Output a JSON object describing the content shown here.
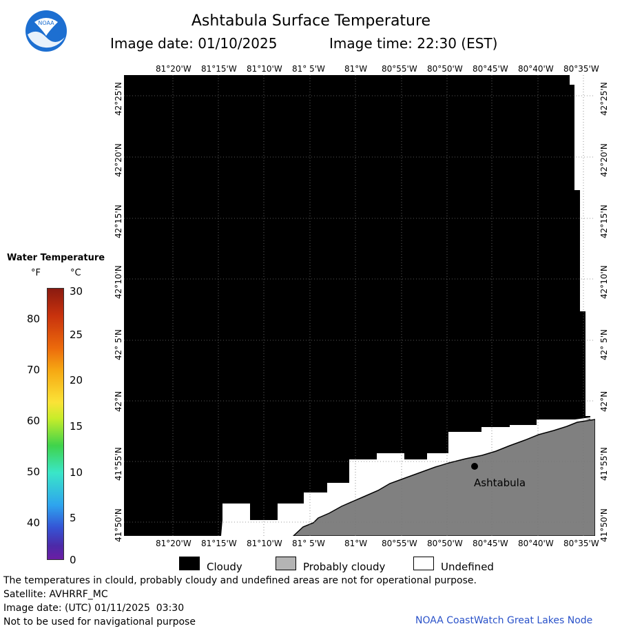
{
  "header": {
    "title": "Ashtabula Surface Temperature",
    "image_date": "Image date: 01/10/2025",
    "image_time": "Image time: 22:30 (EST)"
  },
  "logo": {
    "text": "NOAA",
    "icon": "noaa-logo-icon"
  },
  "map": {
    "lon_labels": [
      "81°20'W",
      "81°15'W",
      "81°10'W",
      "81° 5'W",
      "81°W",
      "80°55'W",
      "80°50'W",
      "80°45'W",
      "80°40'W",
      "80°35'W"
    ],
    "lat_labels": [
      "42°25'N",
      "42°20'N",
      "42°15'N",
      "42°10'N",
      "42° 5'N",
      "42°N",
      "41°55'N",
      "41°50'N"
    ],
    "city_label": "Ashtabula",
    "colors": {
      "cloudy": "#000000",
      "probably_cloudy": "#808080",
      "undefined": "#ffffff"
    }
  },
  "legend": {
    "title": "Water Temperature",
    "unit_f": "°F",
    "unit_c": "°C",
    "fahrenheit_ticks": [
      "80",
      "70",
      "60",
      "50",
      "40"
    ],
    "celsius_ticks": [
      "30",
      "25",
      "20",
      "15",
      "10",
      "5",
      "0"
    ]
  },
  "key": {
    "cloudy": "Cloudy",
    "probably_cloudy": "Probably cloudy",
    "undefined": "Undefined"
  },
  "footer": {
    "disclaimer": "The temperatures in clould, probably cloudy and undefined areas are not for operational purpose.",
    "satellite": "Satellite: AVHRRF_MC",
    "utc_date": "Image date: (UTC) 01/11/2025  03:30",
    "nav_warning": "Not to be used for navigational purpose",
    "credit": "NOAA CoastWatch Great Lakes Node"
  }
}
